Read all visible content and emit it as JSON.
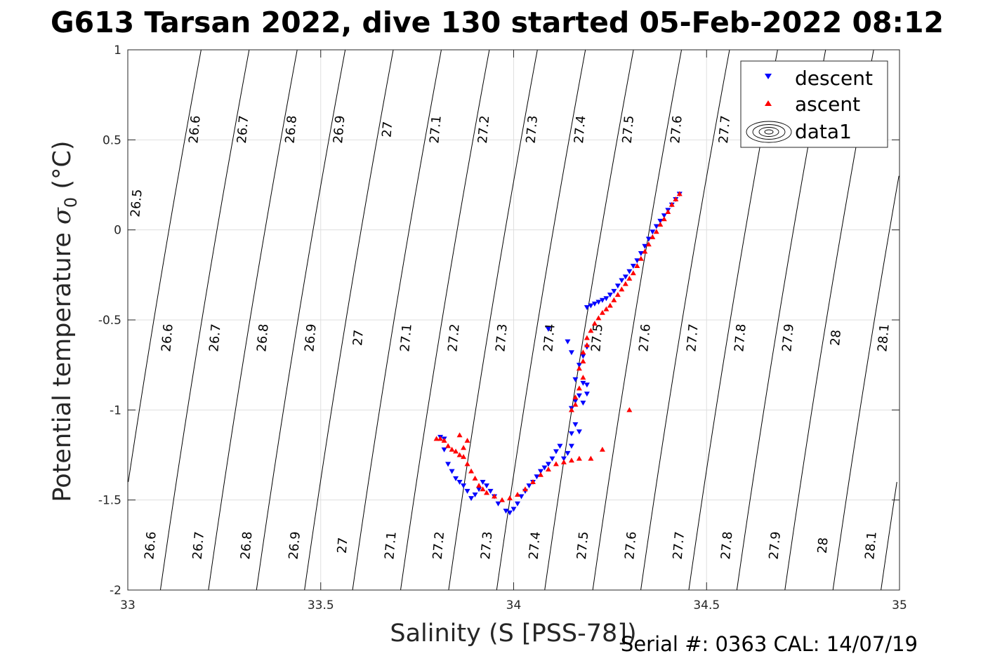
{
  "title": "G613 Tarsan 2022, dive 130 started 05-Feb-2022 08:12",
  "footer": "Serial #: 0363  CAL: 14/07/19",
  "chart_data": {
    "type": "scatter",
    "xlabel": "Salinity (S [PSS-78])",
    "ylabel": {
      "main": "Potential temperature ",
      "sigma": "σ",
      "sub": "0",
      "unit": " (°C)"
    },
    "xlim": [
      33,
      35
    ],
    "ylim": [
      -2,
      1
    ],
    "xticks": [
      33,
      33.5,
      34,
      34.5,
      35
    ],
    "xtick_labels": [
      "33",
      "33.5",
      "34",
      "34.5",
      "35"
    ],
    "yticks": [
      -2,
      -1.5,
      -1,
      -0.5,
      0,
      0.5,
      1
    ],
    "ytick_labels": [
      "-2",
      "-1.5",
      "-1",
      "-0.5",
      "0",
      "0.5",
      "1"
    ],
    "grid": true,
    "legend_position": "top-right",
    "legend": [
      "descent",
      "ascent",
      "data1"
    ],
    "contour_levels": [
      26.5,
      26.6,
      26.7,
      26.8,
      26.9,
      27,
      27.1,
      27.2,
      27.3,
      27.4,
      27.5,
      27.6,
      27.7,
      27.8,
      27.9,
      28,
      28.1
    ],
    "contour_level_labels": [
      "26.5",
      "26.6",
      "26.7",
      "26.8",
      "26.9",
      "27",
      "27.1",
      "27.2",
      "27.3",
      "27.4",
      "27.5",
      "27.6",
      "27.7",
      "27.8",
      "27.9",
      "28",
      "28.1"
    ],
    "contour_labels": {
      "top": [
        "26.6",
        "26.7",
        "26.8",
        "26.9",
        "27",
        "27.1",
        "27.2",
        "27.3",
        "27.4",
        "27.5",
        "27.6",
        "27.7"
      ],
      "left": [
        "26.5"
      ],
      "middle": [
        "26.6",
        "26.7",
        "26.8",
        "26.9",
        "27",
        "27.1",
        "27.2",
        "27.3",
        "27.4",
        "27.5",
        "27.6",
        "27.7",
        "27.8",
        "27.9",
        "28",
        "28.1"
      ],
      "bottom": [
        "26.6",
        "26.7",
        "26.8",
        "26.9",
        "27",
        "27.1",
        "27.2",
        "27.3",
        "27.4",
        "27.5",
        "27.6",
        "27.7",
        "27.8",
        "27.9",
        "28",
        "28.1"
      ]
    },
    "series": [
      {
        "name": "descent",
        "marker": "triangle-down",
        "color": "#0000ff",
        "x": [
          34.43,
          34.42,
          34.41,
          34.4,
          34.39,
          34.38,
          34.37,
          34.36,
          34.35,
          34.34,
          34.33,
          34.32,
          34.31,
          34.3,
          34.29,
          34.28,
          34.27,
          34.26,
          34.25,
          34.24,
          34.23,
          34.22,
          34.21,
          34.2,
          34.19,
          34.18,
          34.17,
          34.16,
          34.15,
          34.19,
          34.19,
          34.18,
          34.19,
          34.18,
          34.17,
          34.16,
          34.15,
          34.09,
          34.14,
          34.17,
          34.16,
          34.15,
          34.15,
          34.14,
          34.13,
          34.12,
          34.11,
          34.1,
          34.09,
          34.08,
          34.07,
          34.06,
          34.05,
          34.04,
          34.03,
          34.02,
          34.01,
          34.0,
          33.99,
          33.98,
          33.96,
          33.95,
          33.94,
          33.93,
          33.92,
          33.91,
          33.9,
          33.89,
          33.88,
          33.87,
          33.86,
          33.85,
          33.84,
          33.83,
          33.82,
          33.81,
          33.82
        ],
        "y": [
          0.2,
          0.17,
          0.14,
          0.11,
          0.08,
          0.05,
          0.02,
          -0.01,
          -0.05,
          -0.09,
          -0.13,
          -0.17,
          -0.2,
          -0.23,
          -0.26,
          -0.28,
          -0.31,
          -0.34,
          -0.36,
          -0.38,
          -0.39,
          -0.4,
          -0.41,
          -0.42,
          -0.43,
          -0.85,
          -0.92,
          -0.95,
          -0.99,
          -0.86,
          -0.91,
          -0.96,
          -0.65,
          -0.7,
          -0.75,
          -0.83,
          -0.68,
          -0.55,
          -0.62,
          -1.12,
          -1.08,
          -1.13,
          -1.2,
          -1.24,
          -1.27,
          -1.2,
          -1.23,
          -1.27,
          -1.3,
          -1.32,
          -1.34,
          -1.37,
          -1.4,
          -1.42,
          -1.45,
          -1.48,
          -1.52,
          -1.55,
          -1.57,
          -1.56,
          -1.52,
          -1.48,
          -1.45,
          -1.42,
          -1.4,
          -1.44,
          -1.47,
          -1.49,
          -1.45,
          -1.42,
          -1.4,
          -1.38,
          -1.34,
          -1.3,
          -1.22,
          -1.15,
          -1.16
        ]
      },
      {
        "name": "ascent",
        "marker": "triangle-up",
        "color": "#ff0000",
        "x": [
          34.43,
          34.42,
          34.41,
          34.4,
          34.39,
          34.38,
          34.37,
          34.36,
          34.35,
          34.34,
          34.33,
          34.32,
          34.31,
          34.3,
          34.29,
          34.28,
          34.27,
          34.26,
          34.25,
          34.24,
          34.23,
          34.22,
          34.21,
          34.2,
          34.19,
          34.19,
          34.18,
          34.18,
          34.17,
          34.18,
          34.17,
          34.16,
          34.16,
          34.15,
          34.3,
          34.23,
          34.2,
          34.17,
          34.15,
          34.13,
          34.11,
          34.09,
          34.07,
          34.05,
          34.03,
          34.01,
          33.99,
          33.97,
          33.95,
          33.93,
          33.92,
          33.91,
          33.9,
          33.89,
          33.88,
          33.87,
          33.86,
          33.85,
          33.84,
          33.83,
          33.82,
          33.81,
          33.8,
          33.86,
          33.88,
          33.87
        ],
        "y": [
          0.2,
          0.17,
          0.14,
          0.1,
          0.06,
          0.03,
          -0.01,
          -0.04,
          -0.08,
          -0.12,
          -0.16,
          -0.2,
          -0.24,
          -0.27,
          -0.3,
          -0.33,
          -0.36,
          -0.39,
          -0.42,
          -0.44,
          -0.46,
          -0.49,
          -0.52,
          -0.56,
          -0.6,
          -0.64,
          -0.68,
          -0.73,
          -0.77,
          -0.82,
          -0.88,
          -0.93,
          -0.97,
          -1.0,
          -1.0,
          -1.22,
          -1.27,
          -1.27,
          -1.28,
          -1.29,
          -1.3,
          -1.33,
          -1.36,
          -1.4,
          -1.44,
          -1.47,
          -1.49,
          -1.5,
          -1.48,
          -1.46,
          -1.44,
          -1.42,
          -1.38,
          -1.34,
          -1.3,
          -1.26,
          -1.25,
          -1.23,
          -1.22,
          -1.2,
          -1.17,
          -1.16,
          -1.16,
          -1.14,
          -1.17,
          -1.21
        ]
      }
    ]
  }
}
